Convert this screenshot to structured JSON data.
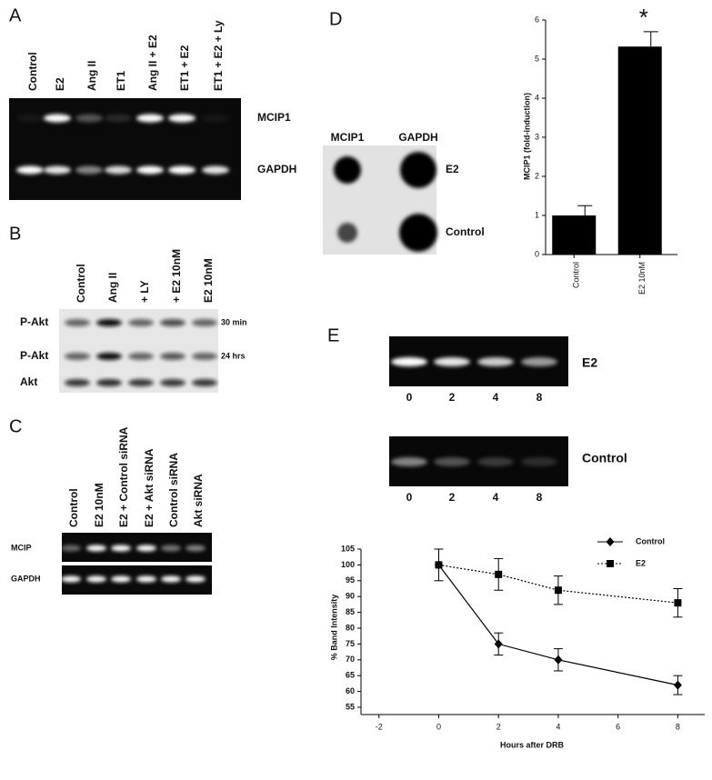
{
  "panels": {
    "A": {
      "label": "A",
      "lanes": [
        "Control",
        "E2",
        "Ang II",
        "ET1",
        "Ang II + E2",
        "ET1 + E2",
        "ET1 + E2 + Ly"
      ],
      "rows": [
        "MCIP1",
        "GAPDH"
      ]
    },
    "B": {
      "label": "B",
      "lanes": [
        "Control",
        "Ang II",
        "+ LY",
        "+ E2 10nM",
        "E2 10nM"
      ],
      "rows": [
        "P-Akt",
        "P-Akt",
        "Akt"
      ],
      "times": [
        "30 min",
        "24 hrs"
      ]
    },
    "C": {
      "label": "C",
      "lanes": [
        "Control",
        "E2 10nM",
        "E2 + Control siRNA",
        "E2 + Akt siRNA",
        "Control siRNA",
        "Akt siRNA"
      ],
      "rows": [
        "MCIP",
        "GAPDH"
      ]
    },
    "D": {
      "label": "D",
      "columns": [
        "MCIP1",
        "GAPDH"
      ],
      "rows": [
        "E2",
        "Control"
      ]
    },
    "E": {
      "label": "E",
      "gels": [
        {
          "name": "E2",
          "lanes": [
            "0",
            "2",
            "4",
            "8"
          ]
        },
        {
          "name": "Control",
          "lanes": [
            "0",
            "2",
            "4",
            "8"
          ]
        }
      ]
    }
  },
  "chart_data": [
    {
      "type": "bar",
      "y_label": "MCIP1 (fold-induction)",
      "categories": [
        "Control",
        "E2 10nM"
      ],
      "values": [
        1,
        5.32
      ],
      "errors": [
        0.25,
        0.38
      ],
      "color": "#000000",
      "ylim": [
        0,
        6
      ],
      "yticks": [
        0,
        1,
        2,
        3,
        4,
        5,
        6
      ],
      "annotation": "*"
    },
    {
      "type": "line",
      "x_label": "Hours after DRB",
      "y_label": "% Band Intensity",
      "x": [
        0,
        2,
        4,
        8
      ],
      "series": [
        {
          "name": "Control",
          "color": "#000000",
          "marker": "diamond",
          "line_style": "solid",
          "values": [
            100,
            75,
            70,
            62
          ],
          "errors": [
            5,
            3.5,
            3.5,
            3
          ]
        },
        {
          "name": "E2",
          "color": "#000000",
          "marker": "square",
          "line_style": "dotted",
          "values": [
            100,
            97,
            92,
            88
          ],
          "errors": [
            5,
            5,
            4.5,
            4.5
          ]
        }
      ],
      "xlim": [
        -2.6,
        8.9
      ],
      "xticks": [
        -2,
        0,
        2,
        4,
        6,
        8
      ],
      "ylim": [
        55,
        105
      ],
      "yticks": [
        55,
        60,
        65,
        70,
        75,
        80,
        85,
        90,
        95,
        100,
        105
      ],
      "legend": "upper right"
    }
  ]
}
